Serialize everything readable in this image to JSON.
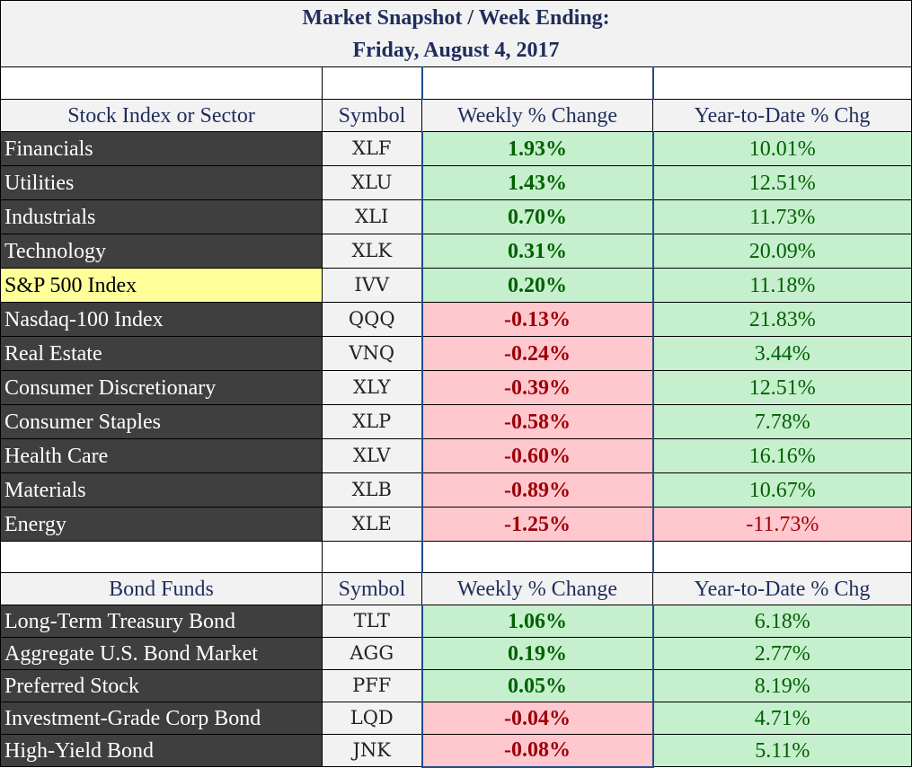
{
  "title": {
    "line1": "Market Snapshot / Week Ending:",
    "line2": "Friday, August 4, 2017"
  },
  "stocks": {
    "headers": {
      "name": "Stock Index or Sector",
      "symbol": "Symbol",
      "weekly": "Weekly % Change",
      "ytd": "Year-to-Date % Chg"
    },
    "rows": [
      {
        "name": "Financials",
        "symbol": "XLF",
        "weekly": "1.93%",
        "ytd": "10.01%"
      },
      {
        "name": "Utilities",
        "symbol": "XLU",
        "weekly": "1.43%",
        "ytd": "12.51%"
      },
      {
        "name": "Industrials",
        "symbol": "XLI",
        "weekly": "0.70%",
        "ytd": "11.73%"
      },
      {
        "name": "Technology",
        "symbol": "XLK",
        "weekly": "0.31%",
        "ytd": "20.09%"
      },
      {
        "name": "S&P 500 Index",
        "symbol": "IVV",
        "weekly": "0.20%",
        "ytd": "11.18%"
      },
      {
        "name": "Nasdaq-100 Index",
        "symbol": "QQQ",
        "weekly": "-0.13%",
        "ytd": "21.83%"
      },
      {
        "name": "Real Estate",
        "symbol": "VNQ",
        "weekly": "-0.24%",
        "ytd": "3.44%"
      },
      {
        "name": "Consumer Discretionary",
        "symbol": "XLY",
        "weekly": "-0.39%",
        "ytd": "12.51%"
      },
      {
        "name": "Consumer Staples",
        "symbol": "XLP",
        "weekly": "-0.58%",
        "ytd": "7.78%"
      },
      {
        "name": "Health Care",
        "symbol": "XLV",
        "weekly": "-0.60%",
        "ytd": "16.16%"
      },
      {
        "name": "Materials",
        "symbol": "XLB",
        "weekly": "-0.89%",
        "ytd": "10.67%"
      },
      {
        "name": "Energy",
        "symbol": "XLE",
        "weekly": "-1.25%",
        "ytd": "-11.73%"
      }
    ]
  },
  "bonds": {
    "headers": {
      "name": "Bond Funds",
      "symbol": "Symbol",
      "weekly": "Weekly % Change",
      "ytd": "Year-to-Date % Chg"
    },
    "rows": [
      {
        "name": "Long-Term Treasury Bond",
        "symbol": "TLT",
        "weekly": "1.06%",
        "ytd": "6.18%"
      },
      {
        "name": "Aggregate U.S. Bond Market",
        "symbol": "AGG",
        "weekly": "0.19%",
        "ytd": "2.77%"
      },
      {
        "name": "Preferred Stock",
        "symbol": "PFF",
        "weekly": "0.05%",
        "ytd": "8.19%"
      },
      {
        "name": "Investment-Grade Corp Bond",
        "symbol": "LQD",
        "weekly": "-0.04%",
        "ytd": "4.71%"
      },
      {
        "name": "High-Yield Bond",
        "symbol": "JNK",
        "weekly": "-0.08%",
        "ytd": "5.11%"
      }
    ]
  },
  "colors": {
    "positive_fill": "#c6efce",
    "positive_text": "#006100",
    "negative_fill": "#ffc7ce",
    "negative_text": "#9c0006",
    "name_fill": "#3f3f3f",
    "highlight_fill": "#ffff99",
    "header_text": "#1f2d5c"
  }
}
